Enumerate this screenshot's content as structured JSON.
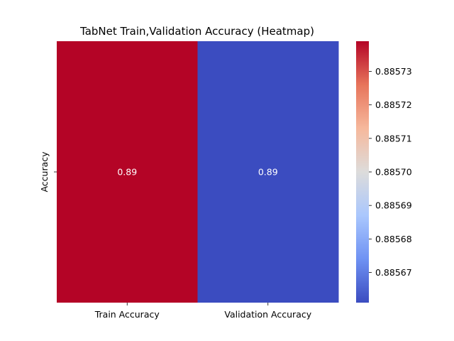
{
  "chart_data": {
    "type": "heatmap",
    "title": "TabNet Train,Validation Accuracy (Heatmap)",
    "x_categories": [
      "Train Accuracy",
      "Validation Accuracy"
    ],
    "y_categories": [
      "Accuracy"
    ],
    "values": [
      [
        0.885739,
        0.885661
      ]
    ],
    "cell_annotations": [
      "0.89",
      "0.89"
    ],
    "colormap": "coolwarm",
    "colormap_colors": [
      "#3b4cc0",
      "#6f92f3",
      "#aac7fd",
      "#dddcdb",
      "#f6b89c",
      "#e7745b",
      "#b40426"
    ],
    "colorbar": {
      "range": [
        0.885661,
        0.885739
      ],
      "ticks": [
        0.88567,
        0.88568,
        0.88569,
        0.8857,
        0.88571,
        0.88572,
        0.88573
      ],
      "tick_labels": [
        "0.88567",
        "0.88568",
        "0.88569",
        "0.88570",
        "0.88571",
        "0.88572",
        "0.88573"
      ]
    }
  }
}
